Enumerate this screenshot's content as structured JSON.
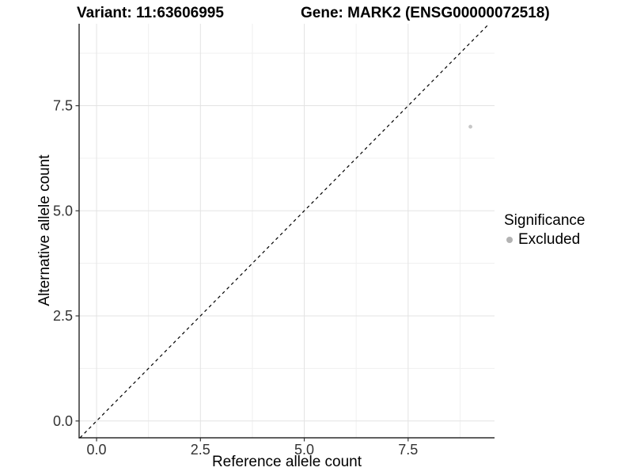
{
  "header": {
    "variant_title": "Variant: 11:63606995",
    "gene_title": "Gene: MARK2 (ENSG00000072518)"
  },
  "chart_data": {
    "type": "scatter",
    "xlabel": "Reference allele count",
    "ylabel": "Alternative allele count",
    "xlim": [
      -0.42,
      9.58
    ],
    "ylim": [
      -0.4,
      9.45
    ],
    "x_ticks": {
      "values": [
        0,
        2.5,
        5,
        7.5
      ],
      "labels": [
        "0.0",
        "2.5",
        "5.0",
        "7.5"
      ]
    },
    "y_ticks": {
      "values": [
        0,
        2.5,
        5,
        7.5
      ],
      "labels": [
        "0.0",
        "2.5",
        "5.0",
        "7.5"
      ]
    },
    "x_minor_ticks": [
      1.25,
      3.75,
      6.25,
      8.75
    ],
    "y_minor_ticks": [
      1.25,
      3.75,
      6.25,
      8.75
    ],
    "grid": {
      "shown": true,
      "major_color": "#e3e3e3",
      "minor_color": "#f0f0f0"
    },
    "axis_color": "#000000",
    "tick_color": "#333333",
    "series": [
      {
        "name": "Excluded",
        "color": "#c7c7c7",
        "point_radius": 2.4,
        "points": [
          {
            "x": 9,
            "y": 7
          }
        ]
      }
    ],
    "reference_line": {
      "equation": "y = x",
      "linetype": "dashed",
      "color": "#000000"
    },
    "legend": {
      "title": "Significance",
      "position": "right",
      "entries": [
        {
          "label": "Excluded",
          "color": "#b3b3b3"
        }
      ]
    }
  }
}
